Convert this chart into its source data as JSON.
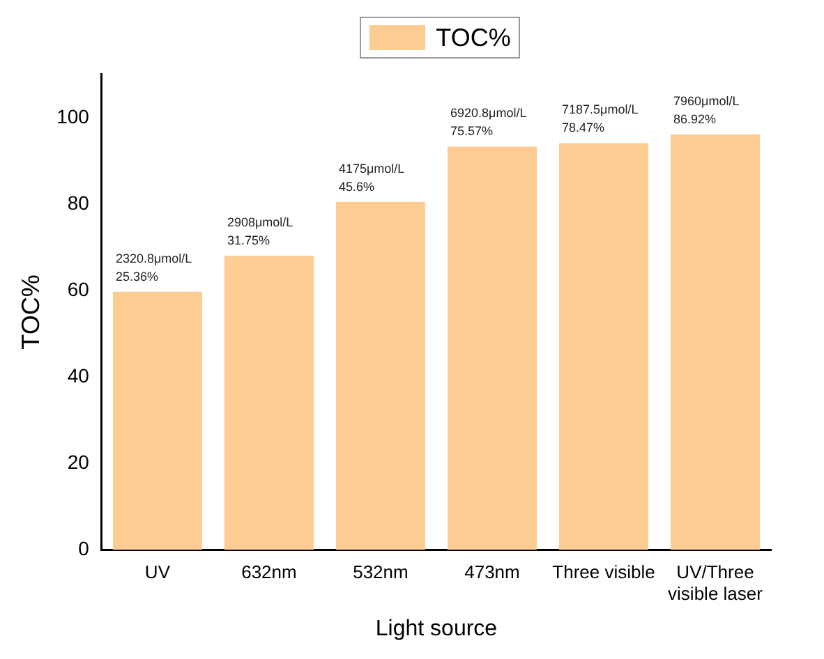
{
  "chart_data": {
    "type": "bar",
    "xlabel": "Light source",
    "ylabel": "TOC%",
    "categories": [
      "UV",
      "632nm",
      "532nm",
      "473nm",
      "Three visible",
      "UV/Three visible laser"
    ],
    "series": [
      {
        "name": "TOC%",
        "color": "#fdcc92",
        "values": [
          59.7,
          68.0,
          80.5,
          93.3,
          94.1,
          96.1
        ]
      }
    ],
    "ylim": [
      0,
      110
    ],
    "yticks": [
      0,
      20,
      40,
      60,
      80,
      100
    ],
    "grid": false,
    "legend": "top",
    "annotations": [
      {
        "text": "2320.8μmol/L\n25.36%",
        "x": "UV",
        "y": 59.7
      },
      {
        "text": "2908μmol/L\n31.75%",
        "x": "632nm",
        "y": 68.0
      },
      {
        "text": "4175μmol/L\n45.6%",
        "x": "532nm",
        "y": 80.5
      },
      {
        "text": "6920.8μmol/L\n75.57%",
        "x": "473nm",
        "y": 93.3
      },
      {
        "text": "7187.5μmol/L\n78.47%",
        "x": "Three visible",
        "y": 94.1
      },
      {
        "text": "7960μmol/L\n86.92%",
        "x": "UV/Three visible laser",
        "y": 96.1
      }
    ]
  }
}
